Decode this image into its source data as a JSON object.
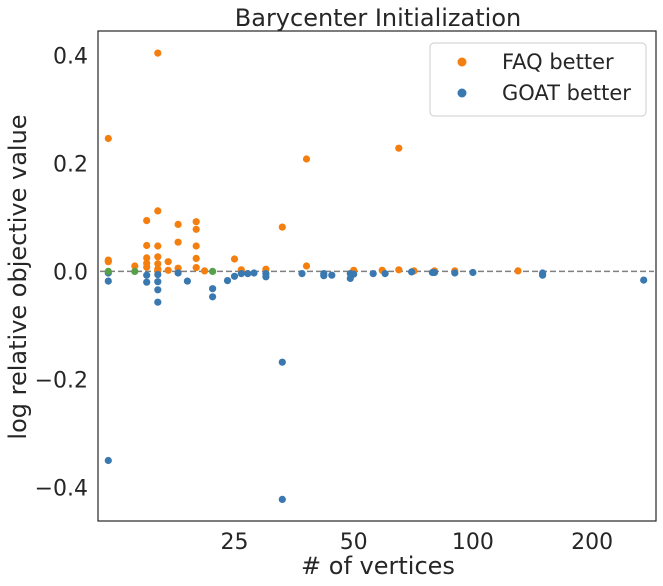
{
  "chart_data": {
    "type": "scatter",
    "title": "Barycenter Initialization",
    "xlabel": "# of vertices",
    "ylabel": "log relative objective value",
    "x_scale": "log",
    "xlim": [
      11.3,
      290
    ],
    "ylim": [
      -0.462,
      0.445
    ],
    "x_ticks": [
      {
        "value": 25,
        "label": "25"
      },
      {
        "value": 50,
        "label": "50"
      },
      {
        "value": 100,
        "label": "100"
      },
      {
        "value": 200,
        "label": "200"
      }
    ],
    "y_ticks": [
      {
        "value": 0.4,
        "label": "0.4"
      },
      {
        "value": 0.2,
        "label": "0.2"
      },
      {
        "value": 0.0,
        "label": "0.0"
      },
      {
        "value": -0.2,
        "label": "−0.2"
      },
      {
        "value": -0.4,
        "label": "−0.4"
      }
    ],
    "reference_line": {
      "y": 0.0,
      "style": "dashed",
      "color": "#808080"
    },
    "grid": false,
    "legend_position": "top-right",
    "series": [
      {
        "name": "FAQ better",
        "color": "#f57f0e",
        "points": [
          [
            12,
            0.246
          ],
          [
            12,
            0.021
          ],
          [
            12,
            0.018
          ],
          [
            14,
            0.01
          ],
          [
            15,
            0.094
          ],
          [
            15,
            0.048
          ],
          [
            15,
            0.025
          ],
          [
            15,
            0.015
          ],
          [
            15,
            0.008
          ],
          [
            16,
            0.404
          ],
          [
            16,
            0.112
          ],
          [
            16,
            0.047
          ],
          [
            16,
            0.027
          ],
          [
            16,
            0.014
          ],
          [
            16,
            0.004
          ],
          [
            16,
            0.001
          ],
          [
            17,
            0.018
          ],
          [
            17,
            0.002
          ],
          [
            18,
            0.087
          ],
          [
            18,
            0.054
          ],
          [
            18,
            0.006
          ],
          [
            20,
            0.092
          ],
          [
            20,
            0.078
          ],
          [
            20,
            0.047
          ],
          [
            20,
            0.024
          ],
          [
            20,
            0.007
          ],
          [
            21,
            0.001
          ],
          [
            25,
            0.023
          ],
          [
            26,
            0.003
          ],
          [
            30,
            0.004
          ],
          [
            33,
            0.082
          ],
          [
            38,
            0.208
          ],
          [
            38,
            0.01
          ],
          [
            50,
            0.002
          ],
          [
            59,
            0.002
          ],
          [
            65,
            0.228
          ],
          [
            65,
            0.003
          ],
          [
            71,
            0.001
          ],
          [
            80,
            0.001
          ],
          [
            90,
            0.001
          ],
          [
            130,
            0.001
          ]
        ]
      },
      {
        "name": "GOAT better",
        "color": "#3a78b0",
        "points": [
          [
            12,
            -0.018
          ],
          [
            12,
            -0.35
          ],
          [
            12,
            -0.003
          ],
          [
            15,
            -0.007
          ],
          [
            15,
            -0.02
          ],
          [
            16,
            -0.057
          ],
          [
            16,
            -0.034
          ],
          [
            16,
            -0.019
          ],
          [
            16,
            -0.006
          ],
          [
            18,
            -0.003
          ],
          [
            19,
            -0.018
          ],
          [
            22,
            -0.047
          ],
          [
            22,
            -0.032
          ],
          [
            24,
            -0.017
          ],
          [
            25,
            -0.009
          ],
          [
            26,
            -0.004
          ],
          [
            27,
            -0.004
          ],
          [
            28,
            -0.003
          ],
          [
            30,
            -0.01
          ],
          [
            30,
            -0.004
          ],
          [
            33,
            -0.168
          ],
          [
            33,
            -0.422
          ],
          [
            37,
            -0.004
          ],
          [
            42,
            -0.008
          ],
          [
            42,
            -0.004
          ],
          [
            44,
            -0.007
          ],
          [
            49,
            -0.013
          ],
          [
            49,
            -0.004
          ],
          [
            50,
            -0.005
          ],
          [
            56,
            -0.004
          ],
          [
            60,
            -0.004
          ],
          [
            70,
            -0.001
          ],
          [
            79,
            -0.002
          ],
          [
            80,
            -0.002
          ],
          [
            90,
            -0.003
          ],
          [
            100,
            -0.002
          ],
          [
            150,
            -0.007
          ],
          [
            150,
            -0.003
          ],
          [
            270,
            -0.016
          ]
        ]
      },
      {
        "name": "",
        "color": "#55a147",
        "points": [
          [
            12,
            0.0
          ],
          [
            14,
            0.0
          ],
          [
            22,
            0.0
          ]
        ]
      }
    ]
  }
}
